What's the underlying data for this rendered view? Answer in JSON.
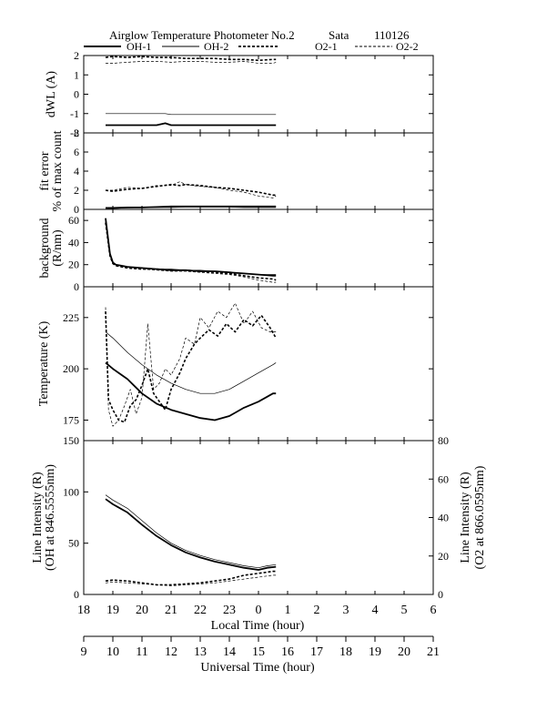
{
  "header": {
    "title": "Airglow Temperature Photometer No.2",
    "site": "Sata",
    "date": "110126"
  },
  "legend": [
    {
      "name": "OH-1",
      "style": "thick-solid"
    },
    {
      "name": "OH-2",
      "style": "thin-solid"
    },
    {
      "name": "O2-1",
      "style": "thick-dashed"
    },
    {
      "name": "O2-2",
      "style": "thin-dashed"
    }
  ],
  "x_axes": {
    "local": {
      "label": "Local Time (hour)",
      "ticks": [
        "18",
        "19",
        "20",
        "21",
        "22",
        "23",
        "0",
        "1",
        "2",
        "3",
        "4",
        "5",
        "6"
      ]
    },
    "universal": {
      "label": "Universal Time (hour)",
      "ticks": [
        "9",
        "10",
        "11",
        "12",
        "13",
        "14",
        "15",
        "16",
        "17",
        "18",
        "19",
        "20",
        "21"
      ]
    }
  },
  "chart_data": [
    {
      "type": "line",
      "panel": "dwl",
      "ylabel": [
        "dWL (A)"
      ],
      "ylim": [
        -2,
        2
      ],
      "yticks": [
        "-2",
        "-1",
        "0",
        "1",
        "2"
      ],
      "x_unit": "local hours (18 = 18:00, 30 = 06:00 next day)",
      "series": [
        {
          "name": "OH-1",
          "x": [
            18.75,
            19,
            19.5,
            20,
            20.5,
            20.8,
            21,
            21.5,
            22,
            22.5,
            23,
            23.5,
            24,
            24.5,
            24.6
          ],
          "y": [
            -1.6,
            -1.6,
            -1.6,
            -1.6,
            -1.6,
            -1.5,
            -1.6,
            -1.6,
            -1.6,
            -1.6,
            -1.6,
            -1.6,
            -1.6,
            -1.6,
            -1.6
          ]
        },
        {
          "name": "OH-2",
          "x": [
            18.75,
            19,
            20,
            20.8,
            21,
            22,
            23,
            24,
            24.6
          ],
          "y": [
            -1.0,
            -1.0,
            -1.0,
            -1.0,
            -1.05,
            -1.05,
            -1.05,
            -1.05,
            -1.05
          ]
        },
        {
          "name": "O2-1",
          "x": [
            18.75,
            19,
            19.5,
            20,
            20.5,
            21,
            21.5,
            22,
            22.5,
            23,
            23.5,
            24,
            24.5,
            24.6
          ],
          "y": [
            1.9,
            1.95,
            1.9,
            1.95,
            1.9,
            1.9,
            1.85,
            1.85,
            1.85,
            1.8,
            1.8,
            1.75,
            1.8,
            1.8
          ]
        },
        {
          "name": "O2-2",
          "x": [
            18.75,
            19,
            19.5,
            20,
            20.5,
            21,
            21.5,
            22,
            22.5,
            23,
            23.5,
            24,
            24.5,
            24.6
          ],
          "y": [
            1.6,
            1.6,
            1.65,
            1.7,
            1.7,
            1.65,
            1.7,
            1.7,
            1.65,
            1.65,
            1.7,
            1.6,
            1.6,
            1.65
          ]
        }
      ]
    },
    {
      "type": "line",
      "panel": "fit-error",
      "ylabel": [
        "fit error",
        "% of max count"
      ],
      "ylim": [
        0,
        8
      ],
      "yticks": [
        "0",
        "2",
        "4",
        "6",
        "8"
      ],
      "series": [
        {
          "name": "OH-1",
          "x": [
            18.75,
            19,
            19.5,
            20,
            20.5,
            21,
            21.5,
            22,
            22.5,
            23,
            23.5,
            24,
            24.5,
            24.6
          ],
          "y": [
            0.15,
            0.15,
            0.2,
            0.2,
            0.25,
            0.3,
            0.3,
            0.3,
            0.3,
            0.3,
            0.3,
            0.3,
            0.3,
            0.3
          ]
        },
        {
          "name": "OH-2",
          "x": [
            18.75,
            19,
            19.5,
            20,
            20.5,
            21,
            21.5,
            22,
            22.5,
            23,
            23.5,
            24,
            24.5,
            24.6
          ],
          "y": [
            0.1,
            0.1,
            0.15,
            0.2,
            0.2,
            0.2,
            0.25,
            0.25,
            0.25,
            0.25,
            0.2,
            0.2,
            0.2,
            0.2
          ]
        },
        {
          "name": "O2-1",
          "x": [
            18.75,
            19,
            19.5,
            20,
            20.5,
            21,
            21.3,
            21.5,
            22,
            22.5,
            23,
            23.5,
            24,
            24.5,
            24.6
          ],
          "y": [
            2.0,
            1.9,
            2.1,
            2.2,
            2.4,
            2.6,
            2.5,
            2.6,
            2.5,
            2.3,
            2.2,
            2.0,
            1.8,
            1.5,
            1.5
          ]
        },
        {
          "name": "O2-2",
          "x": [
            18.75,
            19,
            19.5,
            20,
            20.5,
            21,
            21.3,
            21.5,
            22,
            22.5,
            23,
            23.5,
            24,
            24.5,
            24.6
          ],
          "y": [
            2.0,
            2.0,
            2.3,
            2.2,
            2.5,
            2.5,
            2.9,
            2.6,
            2.4,
            2.3,
            2.0,
            1.8,
            1.4,
            1.2,
            1.4
          ]
        }
      ]
    },
    {
      "type": "line",
      "panel": "background",
      "ylabel": [
        "background",
        "(R/nm)"
      ],
      "ylim": [
        0,
        70
      ],
      "yticks": [
        "0",
        "20",
        "40",
        "60"
      ],
      "series": [
        {
          "name": "OH-1",
          "x": [
            18.75,
            18.9,
            19,
            19.1,
            19.3,
            19.5,
            20,
            20.5,
            21,
            21.5,
            22,
            22.5,
            23,
            23.5,
            24,
            24.5,
            24.6
          ],
          "y": [
            62,
            30,
            22,
            20,
            19,
            18,
            17,
            16,
            15,
            15,
            14,
            14,
            13,
            12,
            11,
            10,
            10
          ]
        },
        {
          "name": "OH-2",
          "x": [
            18.75,
            18.9,
            19,
            19.1,
            19.3,
            19.5,
            20,
            20.5,
            21,
            21.5,
            22,
            22.5,
            23,
            23.5,
            24,
            24.5,
            24.6
          ],
          "y": [
            60,
            30,
            22,
            20,
            19,
            18,
            17,
            16,
            16,
            15,
            15,
            14,
            13,
            12,
            11,
            11,
            11
          ]
        },
        {
          "name": "O2-1",
          "x": [
            18.75,
            18.9,
            19,
            19.1,
            19.3,
            19.5,
            20,
            20.5,
            21,
            21.5,
            22,
            22.5,
            23,
            23.5,
            24,
            24.5,
            24.6
          ],
          "y": [
            58,
            28,
            21,
            19,
            18,
            17,
            16,
            16,
            15,
            15,
            14,
            13,
            12,
            10,
            8,
            7,
            6
          ]
        },
        {
          "name": "O2-2",
          "x": [
            18.75,
            18.9,
            19,
            19.1,
            19.3,
            19.5,
            20,
            20.5,
            21,
            21.5,
            22,
            22.5,
            23,
            23.5,
            24,
            24.5,
            24.6
          ],
          "y": [
            58,
            28,
            21,
            19,
            18,
            17,
            16,
            15,
            14,
            14,
            13,
            12,
            11,
            9,
            6,
            4,
            4
          ]
        }
      ]
    },
    {
      "type": "line",
      "panel": "temperature",
      "ylabel": [
        "Temperature (K)"
      ],
      "ylim": [
        165,
        240
      ],
      "yticks": [
        "175",
        "200",
        "225"
      ],
      "series": [
        {
          "name": "OH-1",
          "x": [
            18.75,
            19,
            19.5,
            20,
            20.5,
            21,
            21.5,
            22,
            22.5,
            23,
            23.5,
            24,
            24.5,
            24.6
          ],
          "y": [
            203,
            200,
            195,
            188,
            183,
            180,
            178,
            176,
            175,
            177,
            181,
            184,
            188,
            188
          ]
        },
        {
          "name": "OH-2",
          "x": [
            18.75,
            19,
            19.5,
            20,
            20.5,
            21,
            21.5,
            22,
            22.5,
            23,
            23.5,
            24,
            24.5,
            24.6
          ],
          "y": [
            218,
            215,
            208,
            202,
            197,
            193,
            190,
            188,
            188,
            190,
            194,
            198,
            202,
            203
          ]
        },
        {
          "name": "O2-1",
          "x": [
            18.75,
            18.85,
            19,
            19.2,
            19.4,
            19.6,
            19.8,
            20,
            20.2,
            20.4,
            20.6,
            20.8,
            21,
            21.3,
            21.5,
            21.8,
            22,
            22.3,
            22.6,
            22.9,
            23.2,
            23.5,
            23.8,
            24.1,
            24.4,
            24.6
          ],
          "y": [
            228,
            185,
            180,
            175,
            174,
            182,
            185,
            192,
            200,
            188,
            184,
            180,
            190,
            198,
            205,
            212,
            215,
            219,
            216,
            222,
            218,
            224,
            221,
            226,
            220,
            215
          ]
        },
        {
          "name": "O2-2",
          "x": [
            18.75,
            18.85,
            19,
            19.2,
            19.4,
            19.6,
            19.8,
            20,
            20.2,
            20.4,
            20.6,
            20.8,
            21,
            21.3,
            21.5,
            21.8,
            22,
            22.3,
            22.6,
            22.9,
            23.2,
            23.5,
            23.8,
            24.1,
            24.4,
            24.6
          ],
          "y": [
            230,
            180,
            172,
            175,
            182,
            190,
            178,
            186,
            222,
            190,
            193,
            200,
            197,
            205,
            215,
            212,
            225,
            220,
            228,
            225,
            232,
            222,
            228,
            220,
            218,
            218
          ]
        }
      ]
    },
    {
      "type": "line",
      "panel": "line-intensity",
      "ylabel": [
        "Line Intensity (R)",
        "(OH at 846.5555nm)"
      ],
      "ylabel_right": [
        "Line Intensity (R)",
        "(O2 at 866.0595nm)"
      ],
      "ylim": [
        0,
        150
      ],
      "ylim_right": [
        0,
        80
      ],
      "yticks": [
        "0",
        "50",
        "100",
        "150"
      ],
      "yticks_right": [
        "0",
        "20",
        "40",
        "60",
        "80"
      ],
      "series": [
        {
          "name": "OH-1",
          "axis": "left",
          "x": [
            18.75,
            19,
            19.5,
            20,
            20.5,
            21,
            21.5,
            22,
            22.5,
            23,
            23.5,
            24,
            24.3,
            24.6
          ],
          "y": [
            93,
            88,
            80,
            68,
            57,
            48,
            41,
            36,
            32,
            29,
            26,
            24,
            26,
            27
          ]
        },
        {
          "name": "OH-2",
          "axis": "left",
          "x": [
            18.75,
            19,
            19.5,
            20,
            20.5,
            21,
            21.5,
            22,
            22.5,
            23,
            23.5,
            24,
            24.3,
            24.6
          ],
          "y": [
            97,
            92,
            84,
            72,
            60,
            50,
            43,
            38,
            34,
            31,
            28,
            26,
            28,
            29
          ]
        },
        {
          "name": "O2-1",
          "axis": "right",
          "x": [
            18.75,
            19,
            19.5,
            20,
            20.5,
            21,
            21.5,
            22,
            22.5,
            23,
            23.5,
            24,
            24.5,
            24.6
          ],
          "y": [
            7,
            7.5,
            7,
            6,
            5,
            5,
            5.5,
            6,
            7,
            8,
            10,
            11,
            12,
            12
          ]
        },
        {
          "name": "O2-2",
          "axis": "right",
          "x": [
            18.75,
            19,
            19.5,
            20,
            20.5,
            21,
            21.5,
            22,
            22.5,
            23,
            23.5,
            24,
            24.5,
            24.6
          ],
          "y": [
            6,
            6.5,
            6,
            5.5,
            5,
            4.5,
            5,
            5.5,
            6,
            7,
            8,
            9,
            10,
            10
          ]
        }
      ]
    }
  ]
}
